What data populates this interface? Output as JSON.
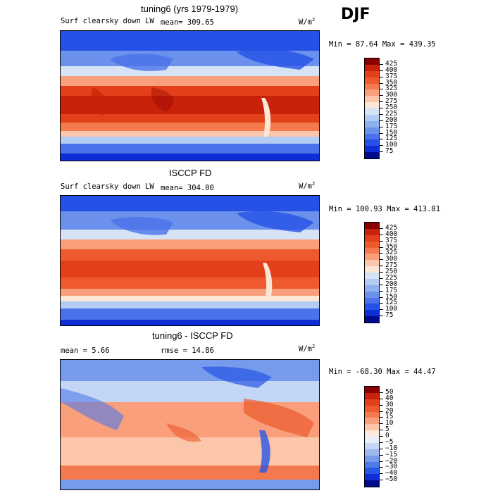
{
  "season": "DJF",
  "panels": [
    {
      "title": "tuning6 (yrs 1979-1979)",
      "field": "Surf clearsky down LW",
      "stat1": "mean= 309.65",
      "stat2": "",
      "units": "W/m",
      "units_sup": "2",
      "minmax": "Min =  87.64 Max = 439.35",
      "levels": [
        "425",
        "400",
        "375",
        "350",
        "325",
        "300",
        "275",
        "250",
        "225",
        "200",
        "175",
        "150",
        "125",
        "100",
        "75"
      ],
      "colors": [
        "#8b0000",
        "#c8230a",
        "#e2401a",
        "#ee5a2d",
        "#f47a4d",
        "#f99f7c",
        "#fbc6a9",
        "#fbe6d8",
        "#d5e3f5",
        "#b3ccf3",
        "#8fb0ef",
        "#6b91ec",
        "#4a72ea",
        "#2651e6",
        "#0d2ed7",
        "#000a8f"
      ]
    },
    {
      "title": "ISCCP FD",
      "field": "Surf clearsky down LW",
      "stat1": "mean= 304.00",
      "stat2": "",
      "units": "W/m",
      "units_sup": "2",
      "minmax": "Min = 100.93 Max = 413.81",
      "levels": [
        "425",
        "400",
        "375",
        "350",
        "325",
        "300",
        "275",
        "250",
        "225",
        "200",
        "175",
        "150",
        "125",
        "100",
        "75"
      ],
      "colors": [
        "#8b0000",
        "#c8230a",
        "#e2401a",
        "#ee5a2d",
        "#f47a4d",
        "#f99f7c",
        "#fbc6a9",
        "#fbe6d8",
        "#d5e3f5",
        "#b3ccf3",
        "#8fb0ef",
        "#6b91ec",
        "#4a72ea",
        "#2651e6",
        "#0d2ed7",
        "#000a8f"
      ]
    },
    {
      "title": "tuning6 - ISCCP FD",
      "field": "",
      "stat1": "mean =   5.66",
      "stat2": "rmse =  14.86",
      "units": "W/m",
      "units_sup": "2",
      "minmax": "Min = -68.30 Max =  44.47",
      "levels": [
        "50",
        "40",
        "30",
        "20",
        "15",
        "10",
        "5",
        "0",
        "−5",
        "−10",
        "−15",
        "−20",
        "−30",
        "−40",
        "−50"
      ],
      "colors": [
        "#8b0000",
        "#c8230a",
        "#e2401a",
        "#ee5a2d",
        "#f47a4d",
        "#f99f7c",
        "#fbc6a9",
        "#fde9dd",
        "#e8eef9",
        "#c4d6f5",
        "#9dbaf0",
        "#769bec",
        "#4f7aea",
        "#2856e6",
        "#0d2ed7",
        "#000a8f"
      ]
    }
  ]
}
